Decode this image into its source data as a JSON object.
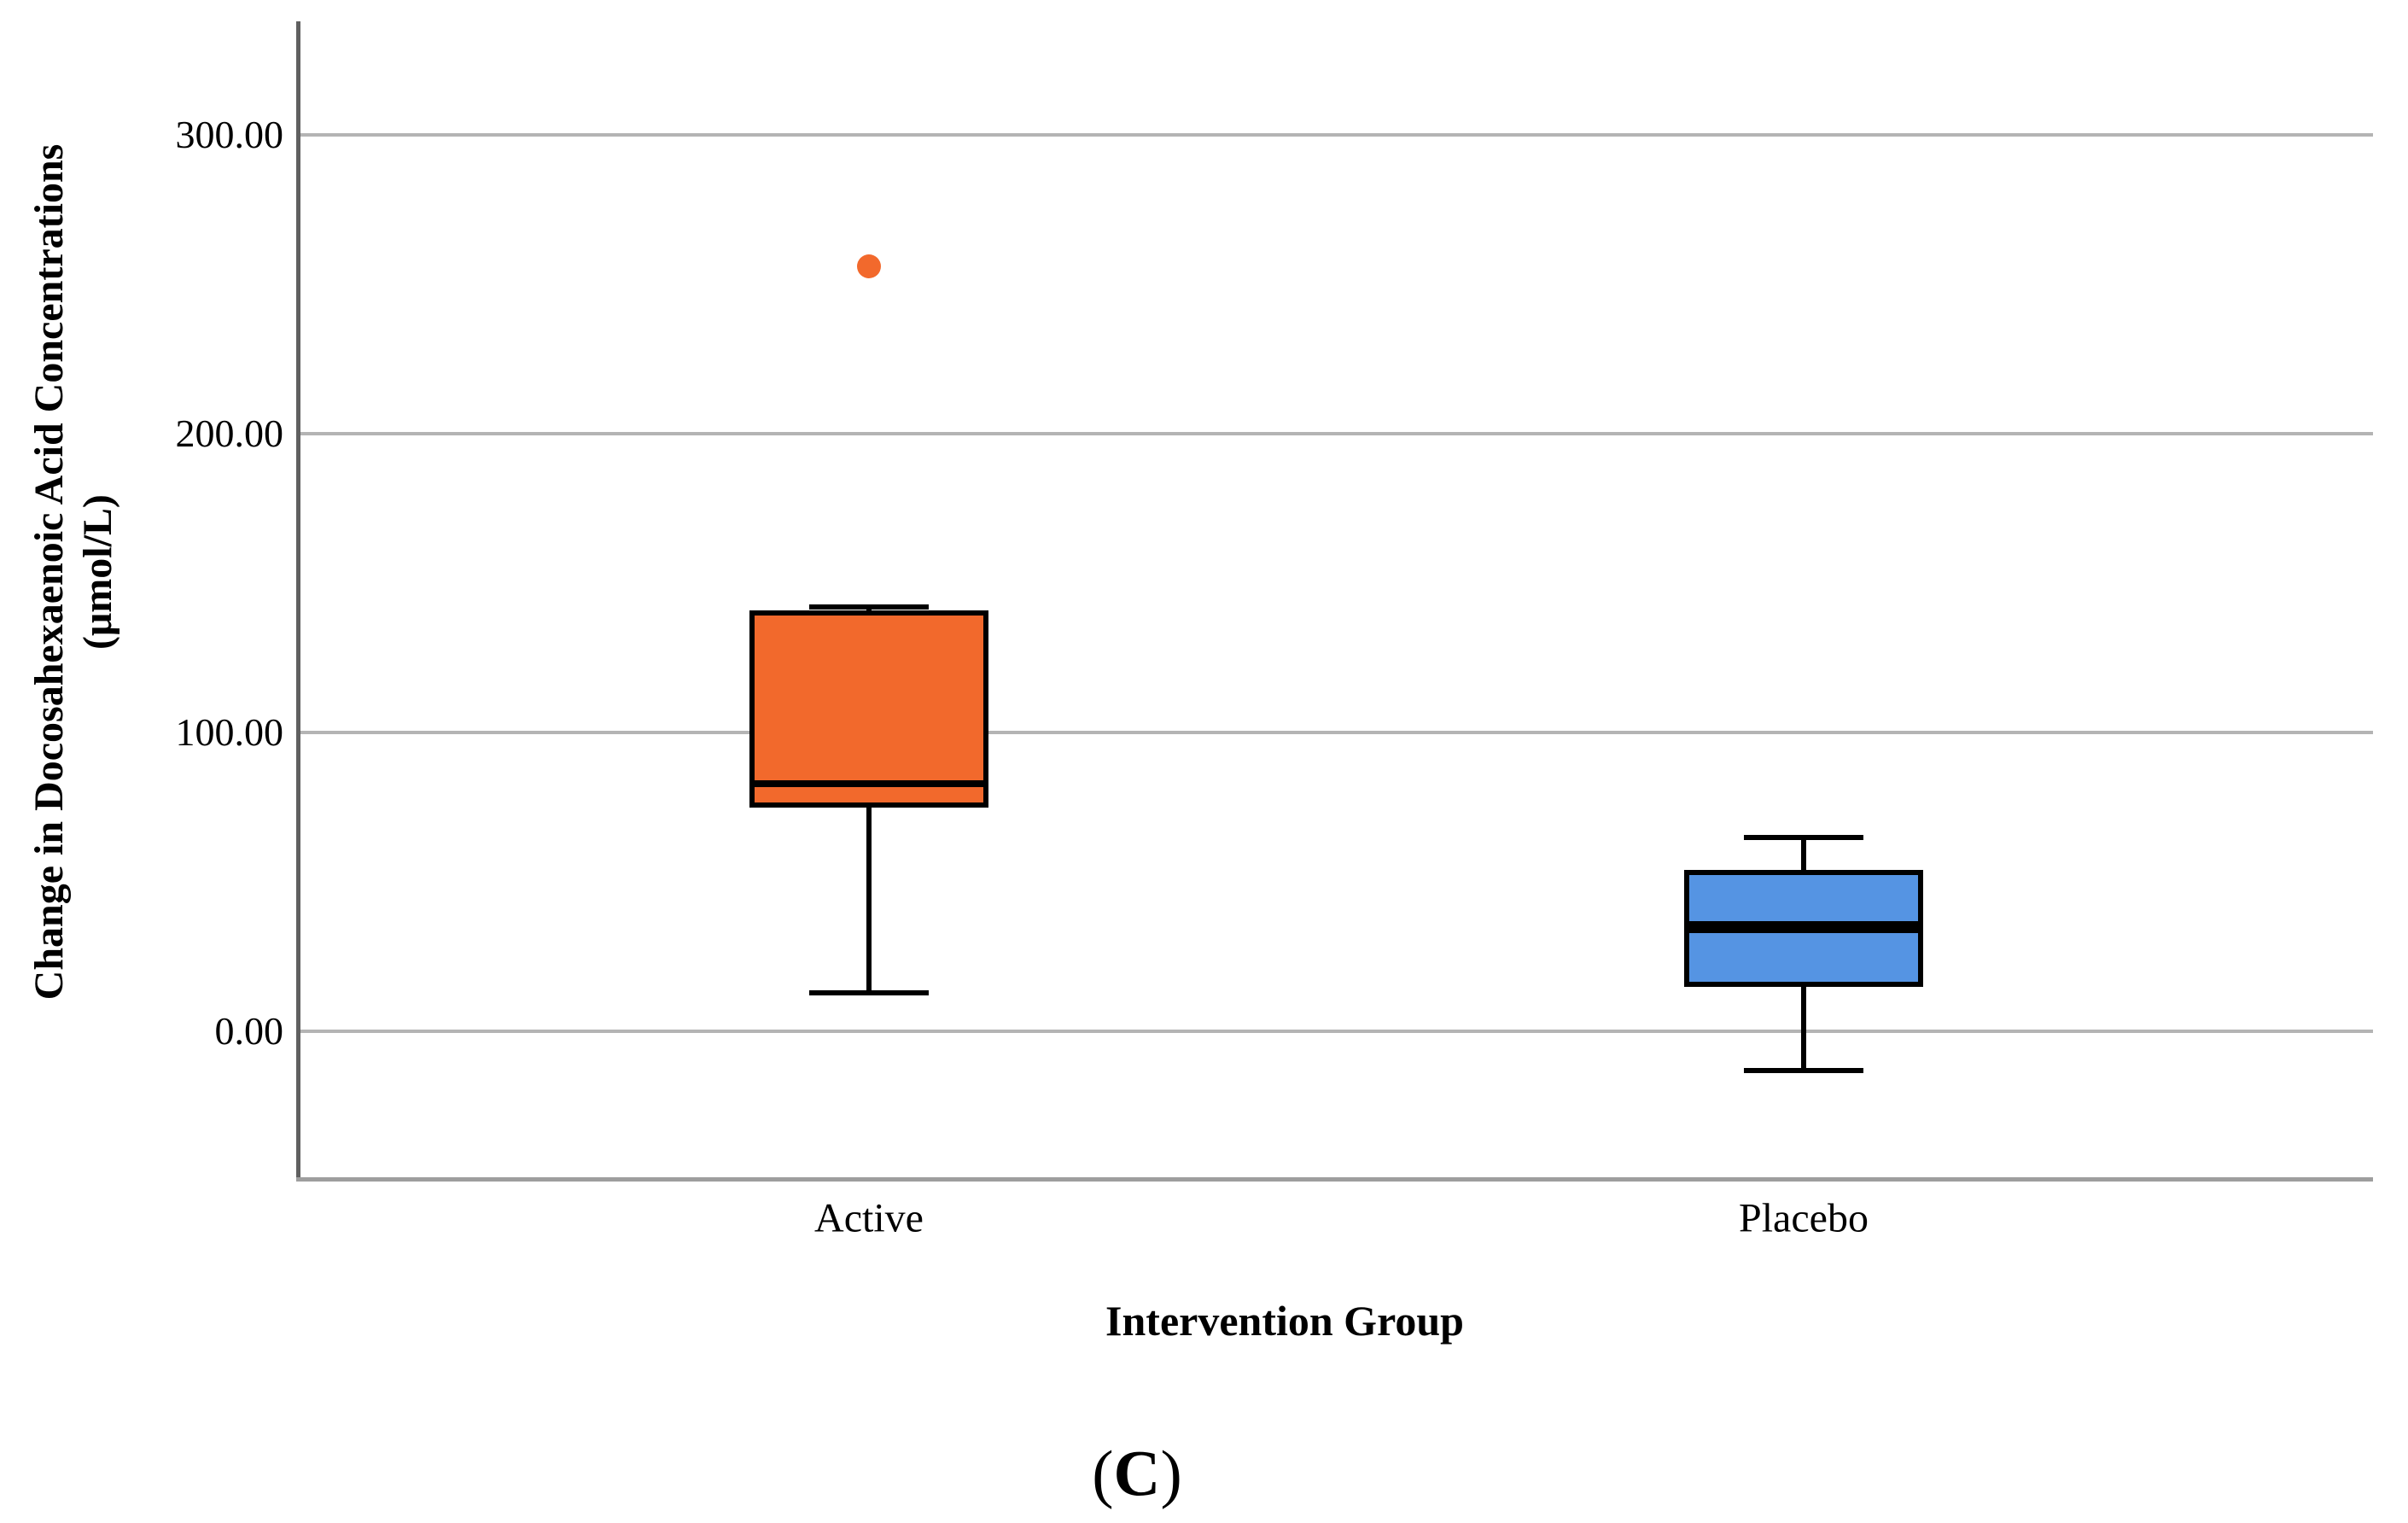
{
  "figure": {
    "caption": {
      "prefix": "(",
      "letter": "C",
      "suffix": ")"
    }
  },
  "chart_data": {
    "type": "boxplot",
    "title": "",
    "xlabel": "Intervention Group",
    "ylabel_line1": "Change in Docosahexaenoic Acid Concentrations",
    "ylabel_line2": "(μmol/L)",
    "categories": [
      "Active",
      "Placebo"
    ],
    "yticks": [
      {
        "value": 300,
        "label": "300.00"
      },
      {
        "value": 200,
        "label": "200.00"
      },
      {
        "value": 100,
        "label": "100.00"
      },
      {
        "value": 0,
        "label": "0.00"
      }
    ],
    "ylim": [
      -50,
      338
    ],
    "grid": "horizontal",
    "legend": "none",
    "series": [
      {
        "name": "Active",
        "color": "#F2692C",
        "min": 13,
        "q1": 75,
        "median": 83,
        "q3": 141,
        "max": 142,
        "outliers": [
          256
        ]
      },
      {
        "name": "Placebo",
        "color": "#5594E3",
        "min": -13,
        "q1": 15,
        "median": 35,
        "q3": 54,
        "max": 65,
        "outliers": []
      }
    ],
    "colors": {
      "gridline": "#b4b4b4",
      "y_axis": "#606060",
      "x_axis_frame": "#9e9e9e",
      "box_border": "#000000"
    }
  }
}
